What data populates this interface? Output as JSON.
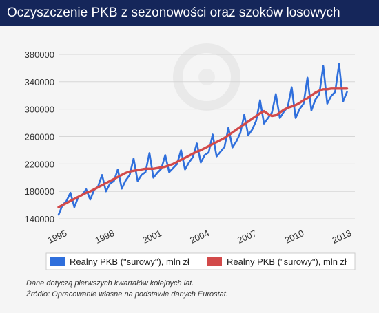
{
  "header": {
    "title": "Oczyszczenie PKB z sezonowości oraz szoków losowych"
  },
  "colors": {
    "header_bg": "#15265a",
    "series_raw": "#2f6fdc",
    "series_trend": "#d24a4a",
    "grid": "#d6d6d6"
  },
  "chart_data": {
    "type": "line",
    "title": "Oczyszczenie PKB z sezonowości oraz szoków losowych",
    "xlabel": "",
    "ylabel": "",
    "ylim": [
      130000,
      395000
    ],
    "yticks": [
      140000,
      180000,
      220000,
      260000,
      300000,
      340000,
      380000
    ],
    "ytick_labels": [
      "140000",
      "180000",
      "220000",
      "260000",
      "300000",
      "340000",
      "380000"
    ],
    "xlim": [
      1995,
      2013.75
    ],
    "xticks": [
      1995,
      1998,
      2001,
      2004,
      2007,
      2010,
      2013
    ],
    "xtick_labels": [
      "1995",
      "1998",
      "2001",
      "2004",
      "2007",
      "2010",
      "2013"
    ],
    "grid": "horizontal",
    "legend": "bottom",
    "x_step": 0.25,
    "series": [
      {
        "name": "Realny PKB (\"surowy\"), mln zł",
        "color": "#2f6fdc",
        "values": [
          146000,
          160000,
          166000,
          178000,
          157000,
          172000,
          175000,
          183000,
          168000,
          182000,
          187000,
          204000,
          180000,
          191000,
          195000,
          212000,
          184000,
          196000,
          204000,
          228000,
          195000,
          204000,
          208000,
          236000,
          200000,
          207000,
          213000,
          233000,
          208000,
          214000,
          220000,
          240000,
          212000,
          222000,
          230000,
          250000,
          222000,
          233000,
          237000,
          263000,
          231000,
          238000,
          245000,
          273000,
          244000,
          253000,
          265000,
          292000,
          262000,
          270000,
          283000,
          313000,
          279000,
          287000,
          295000,
          322000,
          287000,
          296000,
          303000,
          332000,
          287000,
          300000,
          308000,
          346000,
          298000,
          314000,
          322000,
          363000,
          308000,
          319000,
          325000,
          366000,
          311000,
          325000
        ]
      },
      {
        "name": "Realny PKB (\"surowy\"), mln zł",
        "color": "#d24a4a",
        "values": [
          157000,
          160000,
          163000,
          166000,
          169000,
          172000,
          175000,
          178000,
          180000,
          183000,
          186000,
          189000,
          192000,
          195000,
          198000,
          201000,
          204000,
          207000,
          209000,
          210000,
          211000,
          212000,
          213000,
          213000,
          213000,
          214000,
          215000,
          216000,
          218000,
          220000,
          223000,
          226000,
          229000,
          232000,
          235000,
          238000,
          240000,
          243000,
          246000,
          249000,
          252000,
          255000,
          258000,
          262000,
          266000,
          270000,
          274000,
          278000,
          282000,
          286000,
          290000,
          294000,
          297000,
          293000,
          290000,
          291000,
          295000,
          299000,
          302000,
          304000,
          306000,
          309000,
          313000,
          316000,
          320000,
          324000,
          327000,
          329000,
          329000,
          330000,
          330000,
          330000,
          330000,
          330000
        ]
      }
    ]
  }
}
